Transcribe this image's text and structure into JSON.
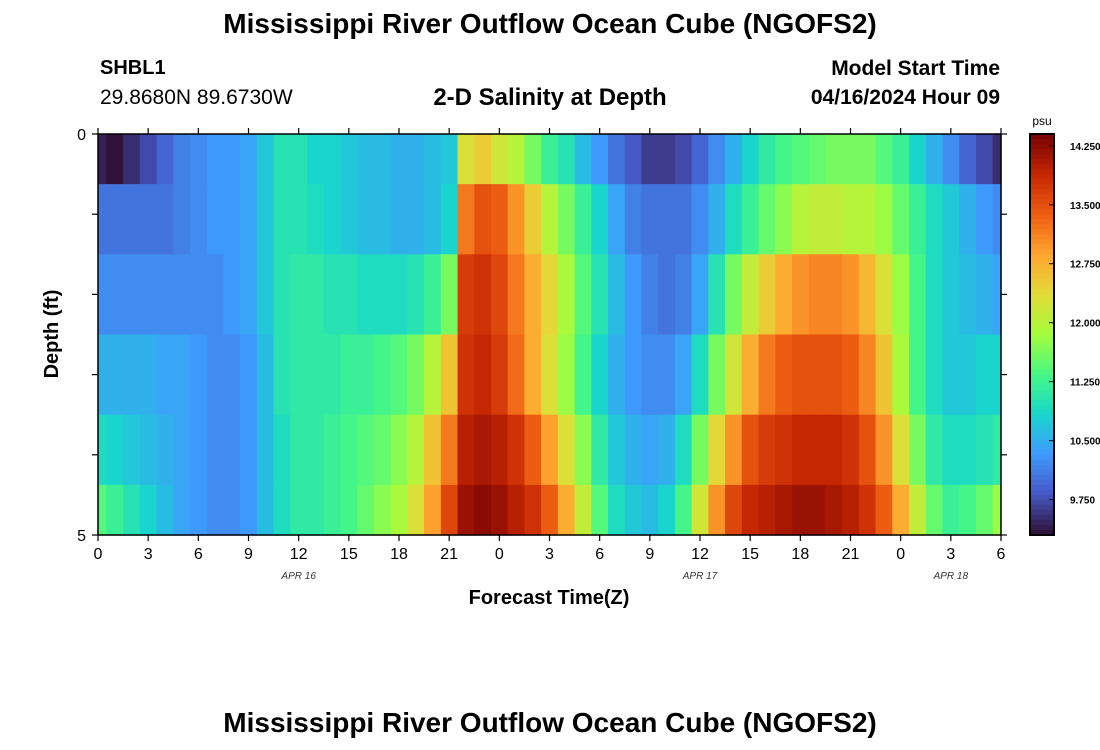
{
  "header": {
    "title": "Mississippi River Outflow Ocean Cube (NGOFS2)",
    "station": "SHBL1",
    "coordinates": "29.8680N  89.6730W",
    "subtitle": "2-D Salinity at Depth",
    "start_label": "Model Start Time",
    "start_value": "04/16/2024 Hour 09"
  },
  "footer": {
    "title": "Mississippi River Outflow Ocean Cube (NGOFS2)"
  },
  "chart_data": {
    "type": "heatmap",
    "xlabel": "Forecast Time(Z)",
    "ylabel": "Depth (ft)",
    "x_ticks": [
      "0",
      "3",
      "6",
      "9",
      "12",
      "15",
      "18",
      "21",
      "0",
      "3",
      "6",
      "9",
      "12",
      "15",
      "18",
      "21",
      "0",
      "3",
      "6"
    ],
    "x_range_hours": [
      0,
      54
    ],
    "y_ticks": [
      "0",
      "5"
    ],
    "y_range": [
      0,
      5
    ],
    "date_labels": [
      {
        "label": "APR 16",
        "hour": 12
      },
      {
        "label": "APR 17",
        "hour": 36
      },
      {
        "label": "APR 18",
        "hour": 51
      }
    ],
    "colorbar": {
      "unit": "psu",
      "ticks": [
        "9.750",
        "10.500",
        "11.250",
        "12.000",
        "12.750",
        "13.500",
        "14.250"
      ],
      "range": [
        9.3,
        14.4
      ]
    },
    "depth_layers": [
      0.25,
      1.0,
      2.0,
      3.0,
      4.0,
      4.75
    ],
    "x_hours": [
      0,
      1,
      2,
      3,
      4,
      5,
      6,
      7,
      8,
      9,
      10,
      11,
      12,
      13,
      14,
      15,
      16,
      17,
      18,
      19,
      20,
      21,
      22,
      23,
      24,
      25,
      26,
      27,
      28,
      29,
      30,
      31,
      32,
      33,
      34,
      35,
      36,
      37,
      38,
      39,
      40,
      41,
      42,
      43,
      44,
      45,
      46,
      47,
      48,
      49,
      50,
      51,
      52,
      53,
      54
    ],
    "layers": [
      [
        9.4,
        9.3,
        9.5,
        9.7,
        9.9,
        10.1,
        10.2,
        10.3,
        10.3,
        10.4,
        10.7,
        11.0,
        11.0,
        10.8,
        10.8,
        10.7,
        10.6,
        10.6,
        10.5,
        10.5,
        10.6,
        10.7,
        12.3,
        12.5,
        12.2,
        12.0,
        11.6,
        11.2,
        11.0,
        10.6,
        10.3,
        10.0,
        9.8,
        9.6,
        9.6,
        9.7,
        9.9,
        10.2,
        10.5,
        10.8,
        11.1,
        11.3,
        11.4,
        11.5,
        11.6,
        11.6,
        11.6,
        11.4,
        11.2,
        10.8,
        10.5,
        10.2,
        9.9,
        9.7,
        9.5
      ],
      [
        10.0,
        10.0,
        10.0,
        10.0,
        10.0,
        10.1,
        10.2,
        10.3,
        10.3,
        10.4,
        10.7,
        11.0,
        11.0,
        10.9,
        10.8,
        10.7,
        10.6,
        10.6,
        10.5,
        10.5,
        10.6,
        10.8,
        13.2,
        13.5,
        13.4,
        13.0,
        12.5,
        12.0,
        11.6,
        11.2,
        10.8,
        10.4,
        10.1,
        10.0,
        10.0,
        10.0,
        10.2,
        10.5,
        10.9,
        11.2,
        11.5,
        11.7,
        12.0,
        12.1,
        12.1,
        12.0,
        12.0,
        11.8,
        11.5,
        11.2,
        10.9,
        10.7,
        10.5,
        10.3,
        10.2
      ],
      [
        10.2,
        10.2,
        10.2,
        10.2,
        10.2,
        10.2,
        10.2,
        10.2,
        10.3,
        10.4,
        10.7,
        11.0,
        11.1,
        11.1,
        11.0,
        11.0,
        10.9,
        10.9,
        10.9,
        11.0,
        11.2,
        11.6,
        13.7,
        13.8,
        13.6,
        13.2,
        12.8,
        12.4,
        11.9,
        11.4,
        11.0,
        10.6,
        10.3,
        10.1,
        10.0,
        10.1,
        10.4,
        11.0,
        11.6,
        12.1,
        12.5,
        12.8,
        13.0,
        13.1,
        13.1,
        13.0,
        12.7,
        12.3,
        11.8,
        11.3,
        10.9,
        10.7,
        10.6,
        10.5,
        10.4
      ],
      [
        10.5,
        10.5,
        10.5,
        10.5,
        10.4,
        10.4,
        10.3,
        10.2,
        10.2,
        10.3,
        10.6,
        11.0,
        11.1,
        11.1,
        11.1,
        11.2,
        11.2,
        11.3,
        11.4,
        11.6,
        12.0,
        12.6,
        13.8,
        13.9,
        13.7,
        13.3,
        12.8,
        12.3,
        11.8,
        11.3,
        10.8,
        10.5,
        10.3,
        10.2,
        10.2,
        10.4,
        10.9,
        11.6,
        12.2,
        12.8,
        13.2,
        13.4,
        13.5,
        13.5,
        13.5,
        13.4,
        13.1,
        12.6,
        11.9,
        11.3,
        10.9,
        10.7,
        10.7,
        10.8,
        10.8
      ],
      [
        10.9,
        10.8,
        10.7,
        10.6,
        10.5,
        10.4,
        10.3,
        10.2,
        10.2,
        10.3,
        10.6,
        10.9,
        11.1,
        11.1,
        11.2,
        11.3,
        11.4,
        11.5,
        11.7,
        12.0,
        12.6,
        13.2,
        14.0,
        14.1,
        14.0,
        13.8,
        13.4,
        12.9,
        12.3,
        11.7,
        11.1,
        10.7,
        10.5,
        10.4,
        10.5,
        10.9,
        11.6,
        12.4,
        13.0,
        13.5,
        13.7,
        13.8,
        13.9,
        13.9,
        13.9,
        13.8,
        13.5,
        13.0,
        12.3,
        11.6,
        11.1,
        10.9,
        10.9,
        11.0,
        11.1
      ],
      [
        11.4,
        11.2,
        11.0,
        10.8,
        10.6,
        10.4,
        10.3,
        10.2,
        10.2,
        10.3,
        10.6,
        10.9,
        11.1,
        11.1,
        11.2,
        11.3,
        11.5,
        11.7,
        11.9,
        12.3,
        12.9,
        13.6,
        14.2,
        14.3,
        14.2,
        14.0,
        13.8,
        13.4,
        12.8,
        12.1,
        11.4,
        10.9,
        10.7,
        10.6,
        10.8,
        11.3,
        12.2,
        13.0,
        13.6,
        13.9,
        14.0,
        14.1,
        14.2,
        14.2,
        14.1,
        14.0,
        13.8,
        13.4,
        12.8,
        12.1,
        11.5,
        11.2,
        11.3,
        11.5,
        11.8
      ]
    ]
  }
}
